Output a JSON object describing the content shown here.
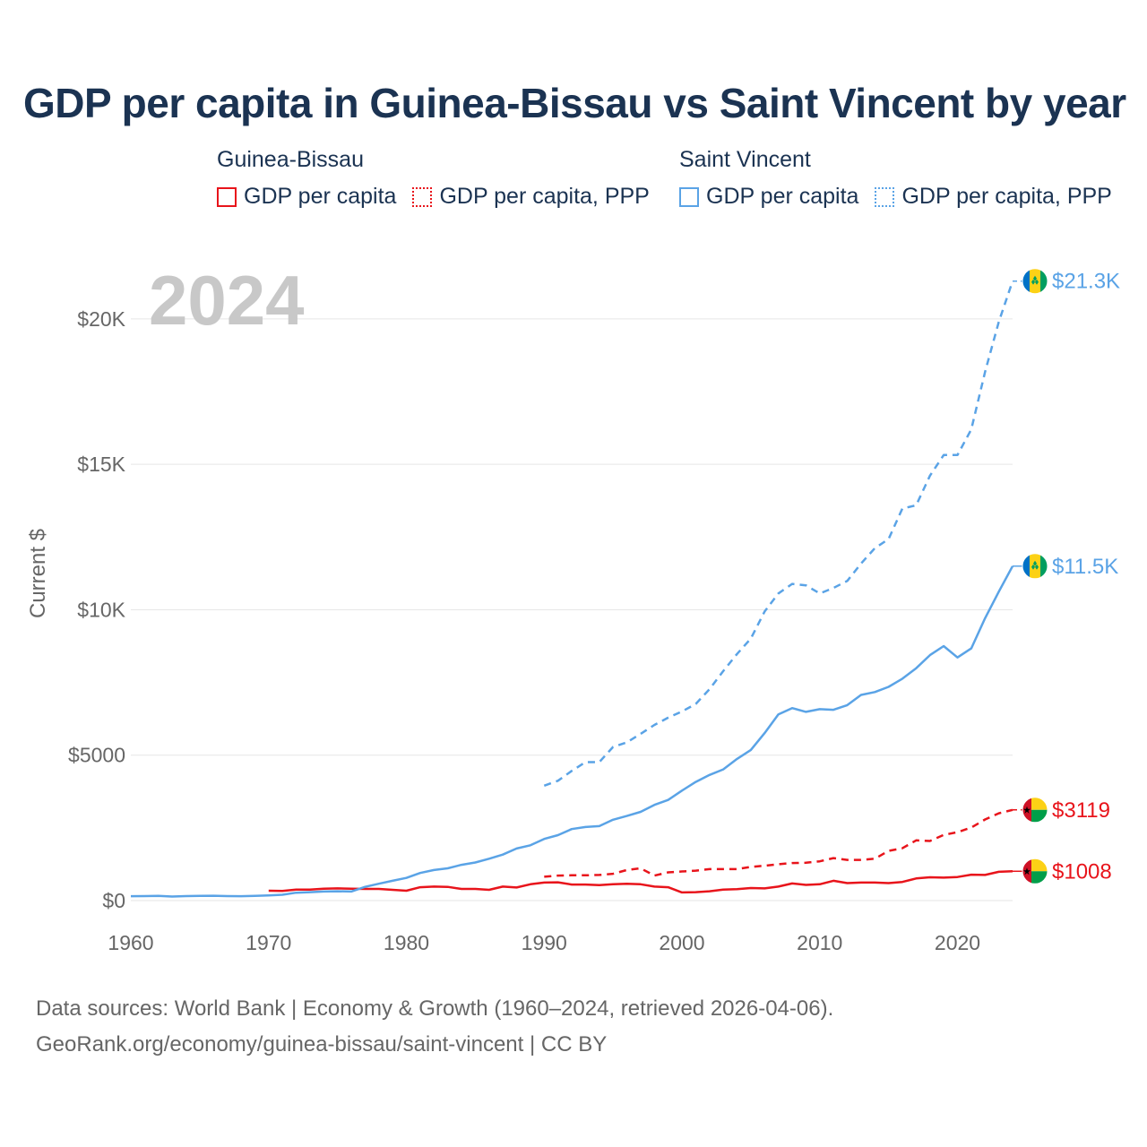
{
  "title": "GDP per capita in Guinea-Bissau vs Saint Vincent by year",
  "legend": {
    "groups": [
      {
        "name": "Guinea-Bissau",
        "items": [
          {
            "label": "GDP per capita",
            "color": "#e8141b",
            "style": "solid"
          },
          {
            "label": "GDP per capita, PPP",
            "color": "#e8141b",
            "style": "dotted"
          }
        ]
      },
      {
        "name": "Saint Vincent",
        "items": [
          {
            "label": "GDP per capita",
            "color": "#5aa3e6",
            "style": "solid"
          },
          {
            "label": "GDP per capita, PPP",
            "color": "#5aa3e6",
            "style": "dotted"
          }
        ]
      }
    ]
  },
  "footer": {
    "line1": "Data sources: World Bank | Economy & Growth (1960–2024, retrieved 2026-04-06).",
    "line2": "GeoRank.org/economy/guinea-bissau/saint-vincent | CC BY"
  },
  "chart_data": {
    "type": "line",
    "year_label": "2024",
    "ylabel": "Current $",
    "xlim": [
      1960,
      2024
    ],
    "ylim": [
      0,
      22000
    ],
    "xticks": [
      1960,
      1970,
      1980,
      1990,
      2000,
      2010,
      2020
    ],
    "xtick_labels": [
      "1960",
      "1970",
      "1980",
      "1990",
      "2000",
      "2010",
      "2020"
    ],
    "yticks": [
      0,
      5000,
      10000,
      15000,
      20000
    ],
    "ytick_labels": [
      "$0",
      "$5000",
      "$10K",
      "$15K",
      "$20K"
    ],
    "grid": true,
    "series": [
      {
        "name": "Guinea-Bissau GDP per capita",
        "country": "Guinea-Bissau",
        "color": "#e8141b",
        "dash": false,
        "flag": "guinea-bissau-flag",
        "end_label": "$1008",
        "x": [
          1970,
          1971,
          1972,
          1973,
          1974,
          1975,
          1976,
          1977,
          1978,
          1979,
          1980,
          1981,
          1982,
          1983,
          1984,
          1985,
          1986,
          1987,
          1988,
          1989,
          1990,
          1991,
          1992,
          1993,
          1994,
          1995,
          1996,
          1997,
          1998,
          1999,
          2000,
          2001,
          2002,
          2003,
          2004,
          2005,
          2006,
          2007,
          2008,
          2009,
          2010,
          2011,
          2012,
          2013,
          2014,
          2015,
          2016,
          2017,
          2018,
          2019,
          2020,
          2021,
          2022,
          2023,
          2024
        ],
        "values": [
          340,
          330,
          380,
          380,
          410,
          420,
          410,
          400,
          400,
          370,
          340,
          460,
          480,
          470,
          400,
          400,
          370,
          480,
          450,
          560,
          620,
          630,
          550,
          550,
          530,
          560,
          580,
          560,
          480,
          460,
          280,
          290,
          320,
          380,
          390,
          430,
          420,
          480,
          590,
          540,
          560,
          680,
          600,
          620,
          620,
          600,
          640,
          760,
          800,
          790,
          810,
          890,
          880,
          990,
          1008
        ]
      },
      {
        "name": "Guinea-Bissau GDP per capita, PPP",
        "country": "Guinea-Bissau",
        "color": "#e8141b",
        "dash": true,
        "flag": "guinea-bissau-flag",
        "end_label": "$3119",
        "x": [
          1990,
          1991,
          1992,
          1993,
          1994,
          1995,
          1996,
          1997,
          1998,
          1999,
          2000,
          2001,
          2002,
          2003,
          2004,
          2005,
          2006,
          2007,
          2008,
          2009,
          2010,
          2011,
          2012,
          2013,
          2014,
          2015,
          2016,
          2017,
          2018,
          2019,
          2020,
          2021,
          2022,
          2023,
          2024
        ],
        "values": [
          820,
          860,
          870,
          870,
          880,
          920,
          1050,
          1110,
          860,
          970,
          1000,
          1030,
          1080,
          1080,
          1080,
          1160,
          1200,
          1250,
          1290,
          1300,
          1350,
          1460,
          1400,
          1400,
          1440,
          1710,
          1800,
          2070,
          2050,
          2260,
          2350,
          2510,
          2790,
          3000,
          3119
        ]
      },
      {
        "name": "Saint Vincent GDP per capita",
        "country": "Saint Vincent",
        "color": "#5aa3e6",
        "dash": false,
        "flag": "saint-vincent-flag",
        "end_label": "$11.5K",
        "x": [
          1960,
          1961,
          1962,
          1963,
          1964,
          1965,
          1966,
          1967,
          1968,
          1969,
          1970,
          1971,
          1972,
          1973,
          1974,
          1975,
          1976,
          1977,
          1978,
          1979,
          1980,
          1981,
          1982,
          1983,
          1984,
          1985,
          1986,
          1987,
          1988,
          1989,
          1990,
          1991,
          1992,
          1993,
          1994,
          1995,
          1996,
          1997,
          1998,
          1999,
          2000,
          2001,
          2002,
          2003,
          2004,
          2005,
          2006,
          2007,
          2008,
          2009,
          2010,
          2011,
          2012,
          2013,
          2014,
          2015,
          2016,
          2017,
          2018,
          2019,
          2020,
          2021,
          2022,
          2023,
          2024
        ],
        "values": [
          150,
          155,
          160,
          140,
          155,
          160,
          165,
          155,
          150,
          160,
          180,
          200,
          270,
          290,
          310,
          320,
          310,
          470,
          580,
          680,
          780,
          950,
          1050,
          1110,
          1230,
          1310,
          1440,
          1580,
          1790,
          1900,
          2120,
          2250,
          2460,
          2530,
          2560,
          2780,
          2910,
          3050,
          3290,
          3460,
          3780,
          4080,
          4320,
          4510,
          4870,
          5180,
          5760,
          6400,
          6620,
          6490,
          6580,
          6560,
          6720,
          7070,
          7170,
          7350,
          7630,
          7990,
          8440,
          8750,
          8360,
          8670,
          9710,
          10620,
          11500
        ]
      },
      {
        "name": "Saint Vincent GDP per capita, PPP",
        "country": "Saint Vincent",
        "color": "#5aa3e6",
        "dash": true,
        "flag": "saint-vincent-flag",
        "end_label": "$21.3K",
        "x": [
          1990,
          1991,
          1992,
          1993,
          1994,
          1995,
          1996,
          1997,
          1998,
          1999,
          2000,
          2001,
          2002,
          2003,
          2004,
          2005,
          2006,
          2007,
          2008,
          2009,
          2010,
          2011,
          2012,
          2013,
          2014,
          2015,
          2016,
          2017,
          2018,
          2019,
          2020,
          2021,
          2022,
          2023,
          2024
        ],
        "values": [
          3950,
          4120,
          4460,
          4760,
          4760,
          5280,
          5440,
          5730,
          6040,
          6290,
          6500,
          6760,
          7270,
          7890,
          8480,
          9010,
          9940,
          10560,
          10890,
          10840,
          10560,
          10750,
          10990,
          11590,
          12120,
          12430,
          13480,
          13590,
          14610,
          15320,
          15320,
          16200,
          18180,
          19900,
          21300
        ]
      }
    ]
  }
}
